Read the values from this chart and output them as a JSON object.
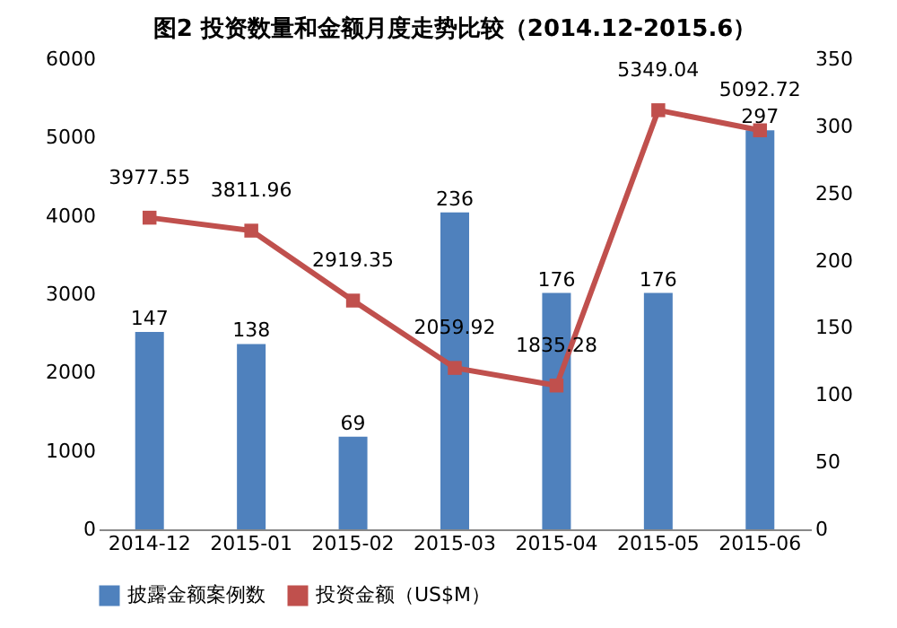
{
  "chart_data": {
    "type": "bar",
    "title": "图2 投资数量和金额月度走势比较（2014.12-2015.6）",
    "categories": [
      "2014-12",
      "2015-01",
      "2015-02",
      "2015-03",
      "2015-04",
      "2015-05",
      "2015-06"
    ],
    "series": [
      {
        "name": "披露金额案例数",
        "axis": "y2",
        "color": "#4f81bd",
        "values": [
          147,
          138,
          69,
          236,
          176,
          176,
          297
        ]
      },
      {
        "name": "投资金额（US$M）",
        "type": "line",
        "color": "#c0504d",
        "marker": "square",
        "values": [
          3977.55,
          3811.96,
          2919.35,
          2059.92,
          1835.28,
          5349.04,
          5092.72
        ]
      }
    ],
    "ylim": [
      0,
      6000
    ],
    "yticks": [
      0,
      1000,
      2000,
      3000,
      4000,
      5000,
      6000
    ],
    "y2lim": [
      0,
      350
    ],
    "y2ticks": [
      0,
      50,
      100,
      150,
      200,
      250,
      300,
      350
    ],
    "data_labels": true,
    "legend": "bottom",
    "grid": false
  }
}
